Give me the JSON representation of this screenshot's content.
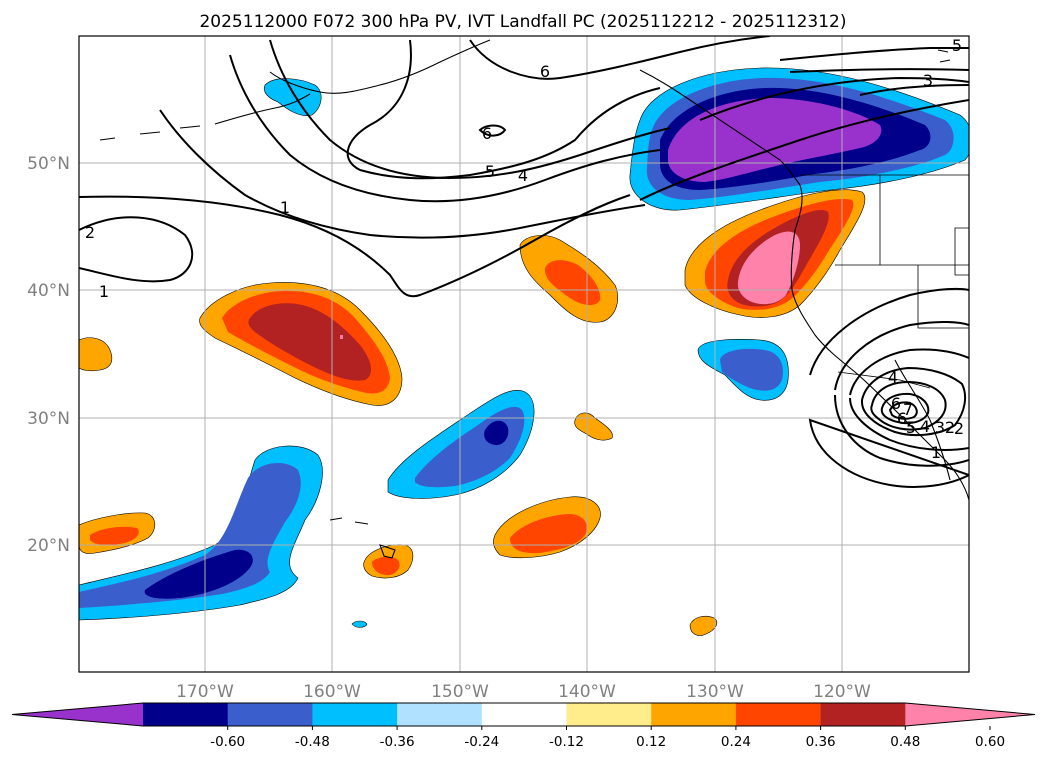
{
  "title": "2025112000 F072 300 hPa PV, IVT Landfall PC (2025112212 - 2025112312)",
  "lat_labels": [
    "50°N",
    "40°N",
    "30°N",
    "20°N"
  ],
  "lon_labels": [
    "170°W",
    "160°W",
    "150°W",
    "140°W",
    "130°W",
    "120°W"
  ],
  "colorbar": {
    "ticks": [
      "-0.60",
      "-0.48",
      "-0.36",
      "-0.24",
      "-0.12",
      "0.12",
      "0.24",
      "0.36",
      "0.48",
      "0.60"
    ],
    "colors": [
      "#9932cc",
      "#00008b",
      "#3a5fcd",
      "#00bfff",
      "#b0e2ff",
      "#ffffff",
      "#ffec8b",
      "#ffa500",
      "#ff4500",
      "#b22222",
      "#ff82ab"
    ],
    "extend": "both"
  },
  "pv_contour_labels": [
    "6",
    "6",
    "5",
    "4",
    "5",
    "3",
    "2",
    "1",
    "1",
    "2",
    "4",
    "6",
    "7",
    "6",
    "5",
    "4",
    "3",
    "2",
    "1"
  ],
  "map_extent": {
    "lon": [
      -180,
      -110
    ],
    "lat": [
      10,
      60
    ]
  },
  "gridlines": true
}
